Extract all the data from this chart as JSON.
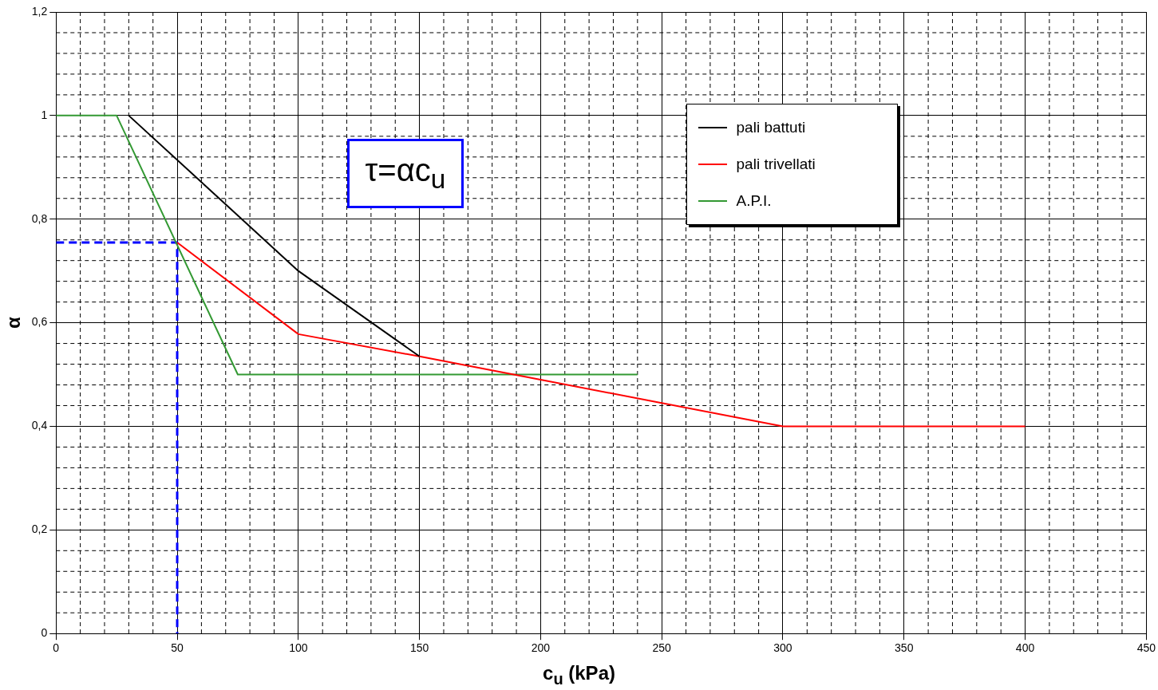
{
  "chart_data": {
    "type": "line",
    "xlabel": "c$_{u}$ (kPa)",
    "ylabel": "α",
    "xlim": [
      0,
      450
    ],
    "xticks": [
      0,
      50,
      100,
      150,
      200,
      250,
      300,
      350,
      400,
      450
    ],
    "ylim": [
      0,
      1.2
    ],
    "yticks": [
      0,
      {
        "value": 0.2,
        "label": "0,2"
      },
      {
        "value": 0.4,
        "label": "0,4"
      },
      {
        "value": 0.6,
        "label": "0,6"
      },
      {
        "value": 0.8,
        "label": "0,8"
      },
      1,
      {
        "value": 1.2,
        "label": "1,2"
      }
    ],
    "grid": true,
    "legend": "top right",
    "marker": "none",
    "annotations": [
      "τ=αc$_{u}$"
    ],
    "series": [
      {
        "name": "pali battuti",
        "color": "#000000",
        "x": [
          30,
          100,
          150
        ],
        "values": [
          1,
          0.7,
          0.535
        ]
      },
      {
        "name": "pali trivellati",
        "color": "#ff0000",
        "x": [
          50,
          100,
          150,
          200,
          250,
          300,
          400
        ],
        "values": [
          0.755,
          0.578,
          0.535,
          0.49,
          0.445,
          0.4,
          0.4
        ]
      },
      {
        "name": "A.P.I.",
        "color": "#339933",
        "x": [
          0,
          25,
          75,
          240
        ],
        "values": [
          1,
          1,
          0.5,
          0.5
        ]
      },
      {
        "color": "#0000ff",
        "line_style": "dashed",
        "x": [
          0,
          50,
          50
        ],
        "values": [
          0.755,
          0.755,
          0
        ]
      }
    ]
  }
}
